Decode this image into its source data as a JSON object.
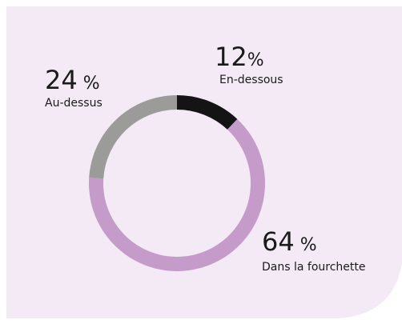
{
  "chart_data": {
    "type": "donut",
    "categories": [
      "En-dessous",
      "Dans la fourchette",
      "Au-dessus"
    ],
    "values": [
      12,
      64,
      24
    ],
    "value_labels": [
      "12%",
      "64 %",
      "24 %"
    ],
    "colors": [
      "#141414",
      "#c49bc9",
      "#9b9b99"
    ]
  }
}
